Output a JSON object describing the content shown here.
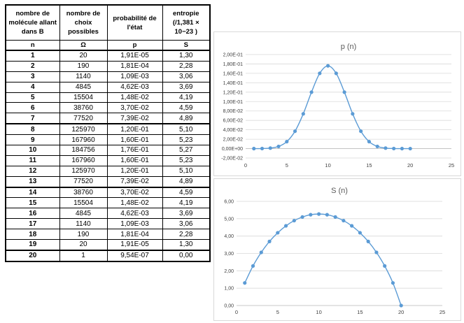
{
  "table": {
    "headers": [
      "nombre de molécule allant dans B",
      "nombre de choix possibles",
      "probabilité de l'état",
      "entropie (/1,381 × 10−23 )"
    ],
    "symbols": [
      "n",
      "Ω",
      "p",
      "S"
    ],
    "rows": [
      [
        "1",
        "20",
        "1,91E-05",
        "1,30"
      ],
      [
        "2",
        "190",
        "1,81E-04",
        "2,28"
      ],
      [
        "3",
        "1140",
        "1,09E-03",
        "3,06"
      ],
      [
        "4",
        "4845",
        "4,62E-03",
        "3,69"
      ],
      [
        "5",
        "15504",
        "1,48E-02",
        "4,19"
      ],
      [
        "6",
        "38760",
        "3,70E-02",
        "4,59"
      ],
      [
        "7",
        "77520",
        "7,39E-02",
        "4,89"
      ],
      [
        "8",
        "125970",
        "1,20E-01",
        "5,10"
      ],
      [
        "9",
        "167960",
        "1,60E-01",
        "5,23"
      ],
      [
        "10",
        "184756",
        "1,76E-01",
        "5,27"
      ],
      [
        "11",
        "167960",
        "1,60E-01",
        "5,23"
      ],
      [
        "12",
        "125970",
        "1,20E-01",
        "5,10"
      ],
      [
        "13",
        "77520",
        "7,39E-02",
        "4,89"
      ],
      [
        "14",
        "38760",
        "3,70E-02",
        "4,59"
      ],
      [
        "15",
        "15504",
        "1,48E-02",
        "4,19"
      ],
      [
        "16",
        "4845",
        "4,62E-03",
        "3,69"
      ],
      [
        "17",
        "1140",
        "1,09E-03",
        "3,06"
      ],
      [
        "18",
        "190",
        "1,81E-04",
        "2,28"
      ],
      [
        "19",
        "20",
        "1,91E-05",
        "1,30"
      ],
      [
        "20",
        "1",
        "9,54E-07",
        "0,00"
      ]
    ]
  },
  "chart_data": [
    {
      "type": "line",
      "title": "p (n)",
      "x": [
        1,
        2,
        3,
        4,
        5,
        6,
        7,
        8,
        9,
        10,
        11,
        12,
        13,
        14,
        15,
        16,
        17,
        18,
        19,
        20
      ],
      "series": [
        {
          "values": [
            1.91e-05,
            0.000181,
            0.00109,
            0.00462,
            0.0148,
            0.037,
            0.0739,
            0.12,
            0.16,
            0.176,
            0.16,
            0.12,
            0.0739,
            0.037,
            0.0148,
            0.00462,
            0.00109,
            0.000181,
            1.91e-05,
            9.54e-07
          ],
          "color": "#5b9bd5"
        }
      ],
      "xlim": [
        0,
        25
      ],
      "ylim": [
        -0.02,
        0.2
      ],
      "xticks": [
        "0",
        "5",
        "10",
        "15",
        "20",
        "25"
      ],
      "yticks": [
        "-2,00E-02",
        "0,00E+00",
        "2,00E-02",
        "4,00E-02",
        "6,00E-02",
        "8,00E-02",
        "1,00E-01",
        "1,20E-01",
        "1,40E-01",
        "1,60E-01",
        "1,80E-01",
        "2,00E-01"
      ],
      "grid": true
    },
    {
      "type": "line",
      "title": "S (n)",
      "x": [
        1,
        2,
        3,
        4,
        5,
        6,
        7,
        8,
        9,
        10,
        11,
        12,
        13,
        14,
        15,
        16,
        17,
        18,
        19,
        20
      ],
      "series": [
        {
          "values": [
            1.3,
            2.28,
            3.06,
            3.69,
            4.19,
            4.59,
            4.89,
            5.1,
            5.23,
            5.27,
            5.23,
            5.1,
            4.89,
            4.59,
            4.19,
            3.69,
            3.06,
            2.28,
            1.3,
            0.0
          ],
          "color": "#5b9bd5"
        }
      ],
      "xlim": [
        0,
        25
      ],
      "ylim": [
        0,
        6
      ],
      "xticks": [
        "0",
        "5",
        "10",
        "15",
        "20",
        "25"
      ],
      "yticks": [
        "0,00",
        "1,00",
        "2,00",
        "3,00",
        "4,00",
        "5,00",
        "6,00"
      ],
      "grid": true
    }
  ]
}
